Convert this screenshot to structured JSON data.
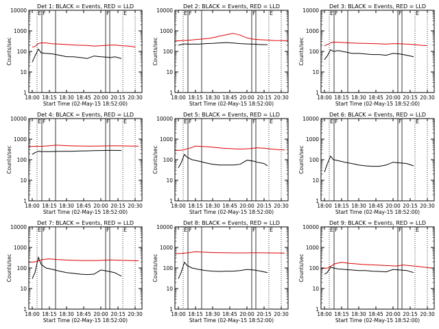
{
  "x_ticks": [
    "18:00",
    "18:15",
    "18:30",
    "18:45",
    "20:00",
    "20:15",
    "20:30"
  ],
  "y_ticks": [
    "1",
    "10",
    "100",
    "1000",
    "10000"
  ],
  "ylabel": "Counts/sec",
  "xlabel": "Start Time (02-May-15 18:52:00)",
  "flag_labels": [
    "E",
    "F",
    "F",
    "E"
  ],
  "colors": {
    "events": "#000000",
    "lld": "#dd0000",
    "axes": "#000000",
    "background": "#ffffff"
  },
  "chart_data": [
    {
      "type": "line",
      "title": "Det 1: BLACK = Events, RED = LLD",
      "yscale": "log",
      "ylim": [
        1,
        10000
      ],
      "xlim_minutes": [
        -5,
        160
      ],
      "series": [
        {
          "name": "BLACK = Events",
          "color": "#000000",
          "x": [
            0,
            4,
            9,
            13,
            20,
            30,
            40,
            50,
            60,
            70,
            75,
            80,
            90,
            100,
            110,
            115,
            120,
            130
          ],
          "y": [
            30,
            60,
            130,
            85,
            80,
            75,
            65,
            55,
            55,
            50,
            48,
            45,
            60,
            55,
            52,
            50,
            55,
            45
          ]
        },
        {
          "name": "RED = LLD",
          "color": "#dd0000",
          "x": [
            0,
            4,
            9,
            13,
            20,
            30,
            40,
            50,
            60,
            70,
            80,
            90,
            100,
            110,
            120,
            130,
            140,
            150
          ],
          "y": [
            160,
            175,
            240,
            260,
            260,
            235,
            225,
            215,
            205,
            200,
            195,
            180,
            190,
            200,
            205,
            190,
            180,
            165
          ]
        }
      ]
    },
    {
      "type": "line",
      "title": "Det 2: BLACK = Events, RED = LLD",
      "yscale": "log",
      "ylim": [
        1,
        10000
      ],
      "xlim_minutes": [
        -5,
        160
      ],
      "series": [
        {
          "name": "BLACK = Events",
          "color": "#000000",
          "x": [
            0,
            4,
            9,
            13,
            20,
            30,
            40,
            50,
            60,
            70,
            80,
            90,
            100,
            110,
            115,
            120,
            130
          ],
          "y": [
            200,
            215,
            230,
            225,
            225,
            225,
            240,
            245,
            260,
            270,
            255,
            240,
            230,
            225,
            220,
            215,
            210
          ]
        },
        {
          "name": "RED = LLD",
          "color": "#dd0000",
          "x": [
            -5,
            5,
            15,
            25,
            35,
            45,
            55,
            60,
            65,
            70,
            75,
            80,
            90,
            100,
            110,
            120,
            130,
            140,
            150,
            160
          ],
          "y": [
            320,
            335,
            350,
            375,
            400,
            430,
            500,
            560,
            600,
            650,
            700,
            750,
            620,
            450,
            390,
            370,
            355,
            340,
            335,
            330
          ]
        }
      ]
    },
    {
      "type": "line",
      "title": "Det 3: BLACK = Events, RED = LLD",
      "yscale": "log",
      "ylim": [
        1,
        10000
      ],
      "xlim_minutes": [
        -5,
        160
      ],
      "series": [
        {
          "name": "BLACK = Events",
          "color": "#000000",
          "x": [
            0,
            4,
            9,
            13,
            20,
            30,
            40,
            50,
            60,
            70,
            80,
            90,
            100,
            110,
            120,
            130
          ],
          "y": [
            40,
            60,
            120,
            100,
            110,
            95,
            80,
            80,
            75,
            70,
            70,
            65,
            80,
            75,
            65,
            55
          ]
        },
        {
          "name": "RED = LLD",
          "color": "#dd0000",
          "x": [
            0,
            4,
            9,
            13,
            20,
            30,
            40,
            50,
            60,
            70,
            80,
            90,
            100,
            110,
            120,
            130,
            140,
            150
          ],
          "y": [
            190,
            210,
            260,
            285,
            280,
            265,
            255,
            250,
            245,
            240,
            235,
            225,
            240,
            235,
            225,
            215,
            200,
            190
          ]
        }
      ]
    },
    {
      "type": "line",
      "title": "Det 4: BLACK = Events, RED = LLD",
      "yscale": "log",
      "ylim": [
        1,
        10000
      ],
      "xlim_minutes": [
        -5,
        160
      ],
      "series": [
        {
          "name": "BLACK = Events",
          "color": "#000000",
          "x": [
            0,
            4,
            9,
            13,
            20,
            30,
            40,
            50,
            60,
            70,
            80,
            90,
            100,
            110,
            120,
            130
          ],
          "y": [
            180,
            220,
            255,
            250,
            245,
            250,
            255,
            255,
            260,
            265,
            270,
            275,
            280,
            285,
            285,
            280
          ]
        },
        {
          "name": "RED = LLD",
          "color": "#dd0000",
          "x": [
            -5,
            5,
            15,
            25,
            35,
            45,
            55,
            65,
            75,
            85,
            95,
            105,
            115,
            125,
            135,
            145,
            155
          ],
          "y": [
            440,
            445,
            450,
            470,
            510,
            490,
            475,
            465,
            460,
            455,
            460,
            465,
            470,
            470,
            465,
            460,
            455
          ]
        }
      ]
    },
    {
      "type": "line",
      "title": "Det 5: BLACK = Events, RED = LLD",
      "yscale": "log",
      "ylim": [
        1,
        10000
      ],
      "xlim_minutes": [
        -5,
        160
      ],
      "series": [
        {
          "name": "BLACK = Events",
          "color": "#000000",
          "x": [
            0,
            4,
            9,
            13,
            20,
            30,
            40,
            50,
            60,
            70,
            80,
            90,
            100,
            110,
            115,
            120,
            125,
            130
          ],
          "y": [
            40,
            70,
            180,
            130,
            100,
            85,
            70,
            60,
            55,
            55,
            55,
            60,
            95,
            85,
            75,
            70,
            65,
            50
          ]
        },
        {
          "name": "RED = LLD",
          "color": "#dd0000",
          "x": [
            -5,
            5,
            15,
            25,
            35,
            45,
            55,
            65,
            75,
            85,
            95,
            105,
            115,
            125,
            135,
            145,
            155
          ],
          "y": [
            280,
            290,
            350,
            460,
            440,
            420,
            390,
            360,
            350,
            330,
            330,
            350,
            380,
            360,
            330,
            310,
            300
          ]
        }
      ]
    },
    {
      "type": "line",
      "title": "Det 6: BLACK = Events, RED = LLD",
      "yscale": "log",
      "ylim": [
        1,
        10000
      ],
      "xlim_minutes": [
        -5,
        160
      ],
      "series": [
        {
          "name": "BLACK = Events",
          "color": "#000000",
          "x": [
            0,
            4,
            9,
            13,
            20,
            30,
            40,
            50,
            60,
            70,
            80,
            90,
            100,
            110,
            120,
            130
          ],
          "y": [
            25,
            60,
            150,
            100,
            90,
            75,
            65,
            55,
            50,
            48,
            48,
            55,
            75,
            70,
            65,
            50
          ]
        }
      ]
    },
    {
      "type": "line",
      "title": "Det 7: BLACK = Events, RED = LLD",
      "yscale": "log",
      "ylim": [
        1,
        10000
      ],
      "xlim_minutes": [
        -5,
        160
      ],
      "series": [
        {
          "name": "BLACK = Events",
          "color": "#000000",
          "x": [
            0,
            4,
            9,
            13,
            20,
            30,
            40,
            50,
            60,
            70,
            80,
            90,
            100,
            110,
            120,
            130
          ],
          "y": [
            30,
            60,
            330,
            150,
            100,
            85,
            70,
            60,
            55,
            50,
            48,
            50,
            80,
            70,
            60,
            40
          ]
        },
        {
          "name": "RED = LLD",
          "color": "#dd0000",
          "x": [
            -5,
            5,
            15,
            25,
            35,
            45,
            55,
            65,
            75,
            85,
            95,
            105,
            115,
            125,
            135,
            145,
            155
          ],
          "y": [
            190,
            200,
            260,
            280,
            260,
            250,
            240,
            235,
            230,
            230,
            230,
            240,
            245,
            240,
            235,
            230,
            225
          ]
        }
      ]
    },
    {
      "type": "line",
      "title": "Det 8: BLACK = Events, RED = LLD",
      "yscale": "log",
      "ylim": [
        1,
        10000
      ],
      "xlim_minutes": [
        -5,
        160
      ],
      "series": [
        {
          "name": "BLACK = Events",
          "color": "#000000",
          "x": [
            0,
            4,
            9,
            13,
            20,
            30,
            40,
            50,
            60,
            70,
            80,
            90,
            100,
            110,
            120,
            130
          ],
          "y": [
            30,
            60,
            190,
            130,
            100,
            85,
            75,
            70,
            68,
            70,
            70,
            75,
            85,
            80,
            70,
            60
          ]
        },
        {
          "name": "RED = LLD",
          "color": "#dd0000",
          "x": [
            -5,
            5,
            15,
            25,
            35,
            45,
            55,
            65,
            75,
            85,
            95,
            105,
            115,
            125,
            135,
            145,
            155
          ],
          "y": [
            500,
            510,
            560,
            620,
            590,
            570,
            560,
            550,
            545,
            540,
            540,
            545,
            550,
            545,
            540,
            535,
            530
          ]
        }
      ]
    },
    {
      "type": "line",
      "title": "Det 9: BLACK = Events, RED = LLD",
      "yscale": "log",
      "ylim": [
        1,
        10000
      ],
      "xlim_minutes": [
        -5,
        160
      ],
      "series": [
        {
          "name": "BLACK = Events",
          "color": "#000000",
          "x": [
            0,
            4,
            9,
            13,
            20,
            30,
            40,
            50,
            60,
            70,
            80,
            90,
            100,
            110,
            120,
            130
          ],
          "y": [
            50,
            60,
            110,
            100,
            90,
            85,
            80,
            75,
            75,
            70,
            68,
            65,
            85,
            80,
            75,
            60
          ]
        },
        {
          "name": "RED = LLD",
          "color": "#dd0000",
          "x": [
            -5,
            5,
            15,
            25,
            35,
            45,
            55,
            65,
            75,
            85,
            95,
            105,
            115,
            125,
            135,
            145,
            155
          ],
          "y": [
            95,
            100,
            160,
            190,
            170,
            160,
            150,
            145,
            140,
            135,
            130,
            125,
            140,
            130,
            120,
            110,
            100
          ]
        }
      ]
    }
  ]
}
